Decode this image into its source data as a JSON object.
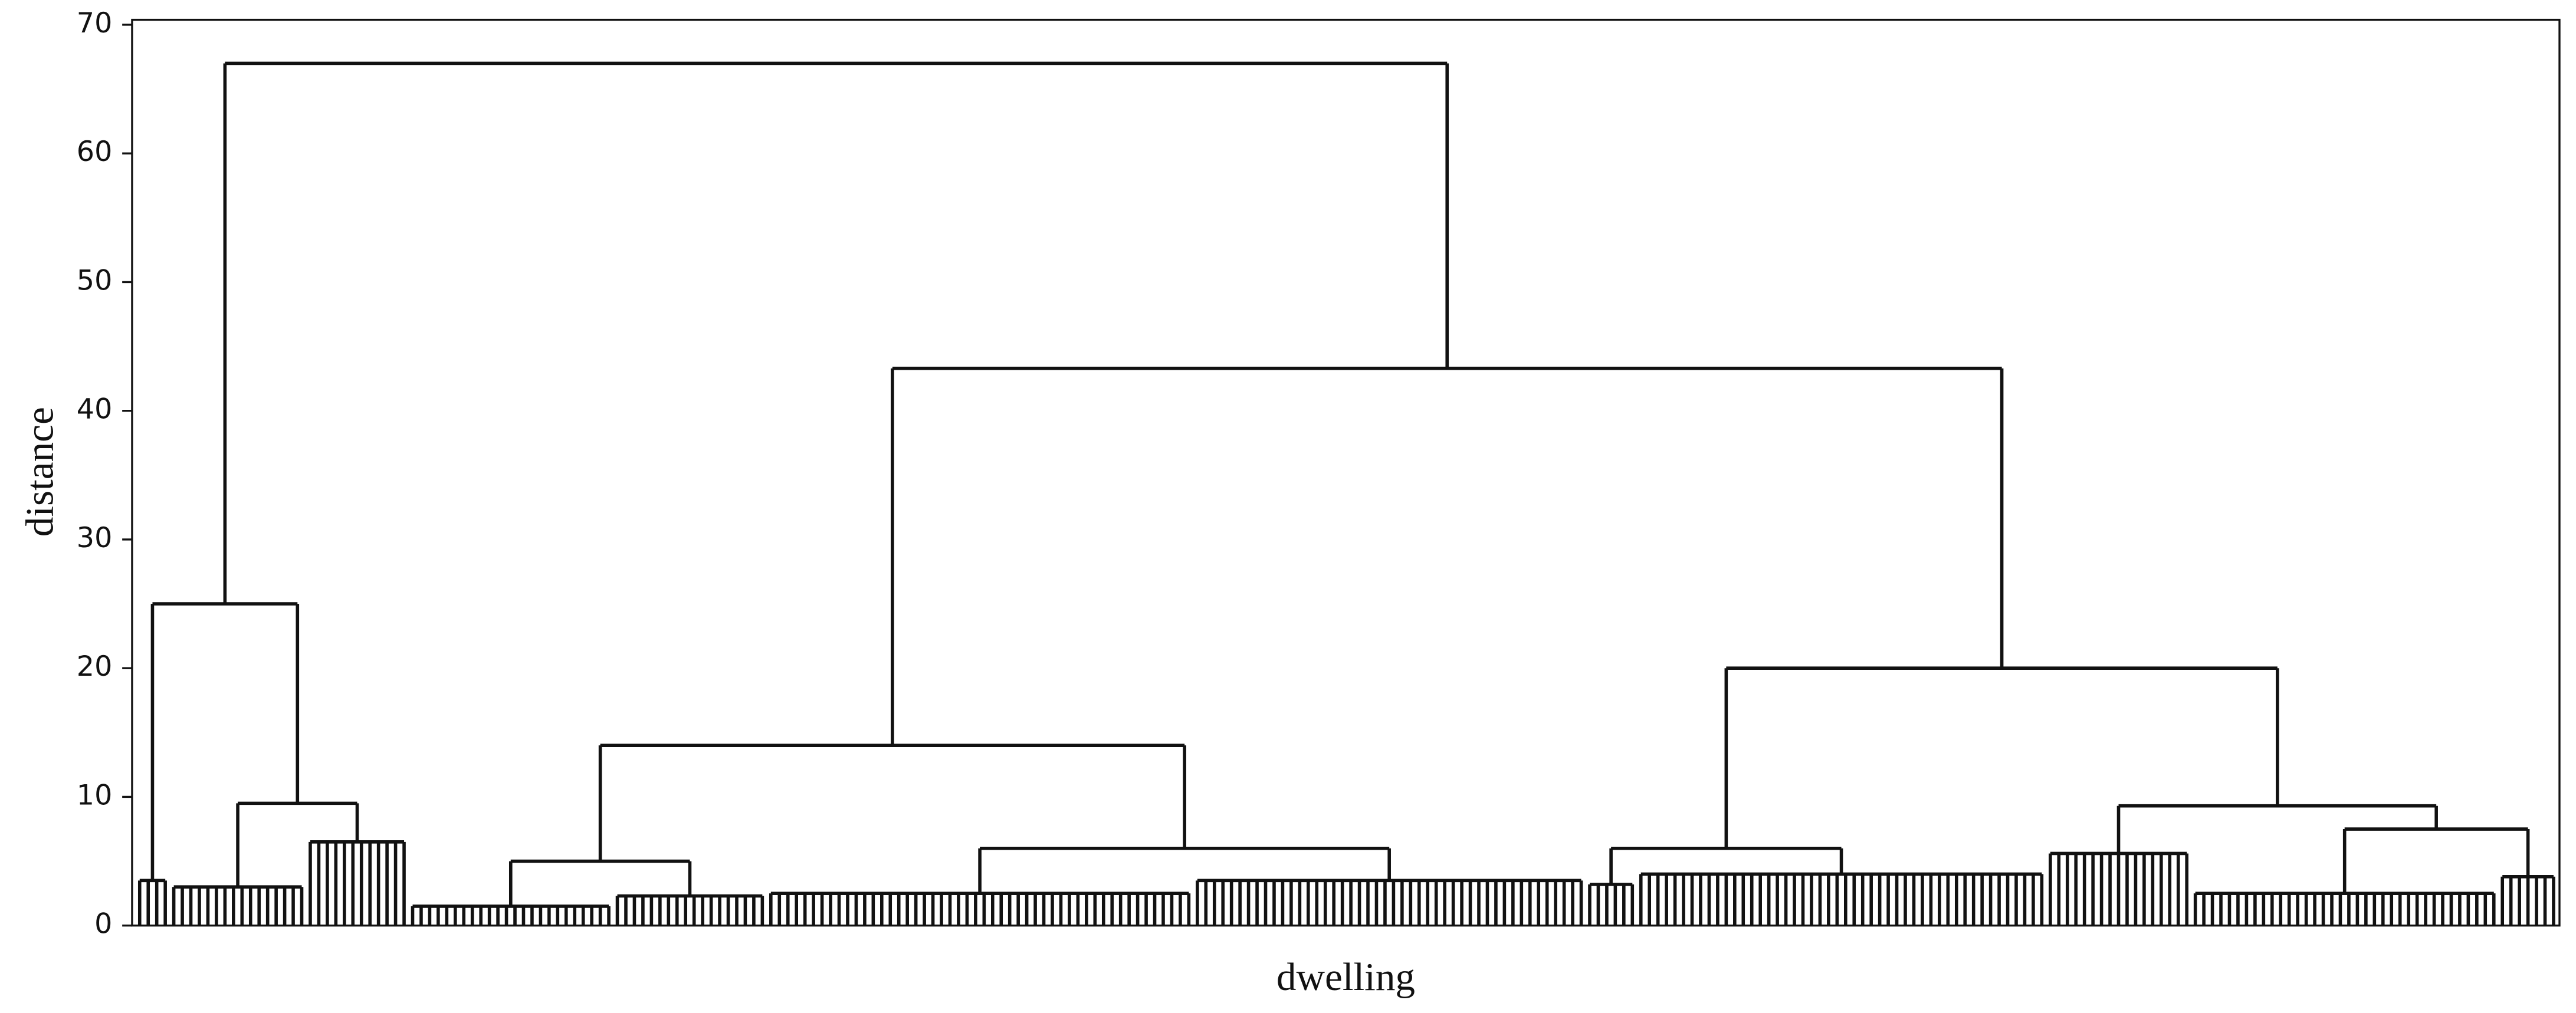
{
  "chart_data": {
    "type": "dendrogram",
    "xlabel": "dwelling",
    "ylabel": "distance",
    "ylim": [
      0,
      70
    ],
    "yticks": [
      0,
      10,
      20,
      30,
      40,
      50,
      60,
      70
    ],
    "color": "#111111",
    "tree": {
      "height": 67,
      "children": [
        {
          "height": 25,
          "children": [
            {
              "height": 3.5,
              "size": 4
            },
            {
              "height": 9.5,
              "children": [
                {
                  "height": 3,
                  "size": 16
                },
                {
                  "height": 6.5,
                  "size": 12
                }
              ]
            }
          ]
        },
        {
          "height": 43.3,
          "children": [
            {
              "height": 14,
              "children": [
                {
                  "height": 5,
                  "children": [
                    {
                      "height": 1.5,
                      "size": 24
                    },
                    {
                      "height": 2.3,
                      "size": 18
                    }
                  ]
                },
                {
                  "height": 6,
                  "children": [
                    {
                      "height": 2.5,
                      "size": 50
                    },
                    {
                      "height": 3.5,
                      "size": 46
                    }
                  ]
                }
              ]
            },
            {
              "height": 20,
              "children": [
                {
                  "height": 6,
                  "children": [
                    {
                      "height": 3.2,
                      "size": 6
                    },
                    {
                      "height": 4,
                      "size": 48
                    }
                  ]
                },
                {
                  "height": 9.3,
                  "children": [
                    {
                      "height": 5.6,
                      "size": 17
                    },
                    {
                      "height": 7.5,
                      "children": [
                        {
                          "height": 2.5,
                          "size": 36
                        },
                        {
                          "height": 3.8,
                          "size": 7
                        }
                      ]
                    }
                  ]
                }
              ]
            }
          ]
        }
      ]
    }
  }
}
